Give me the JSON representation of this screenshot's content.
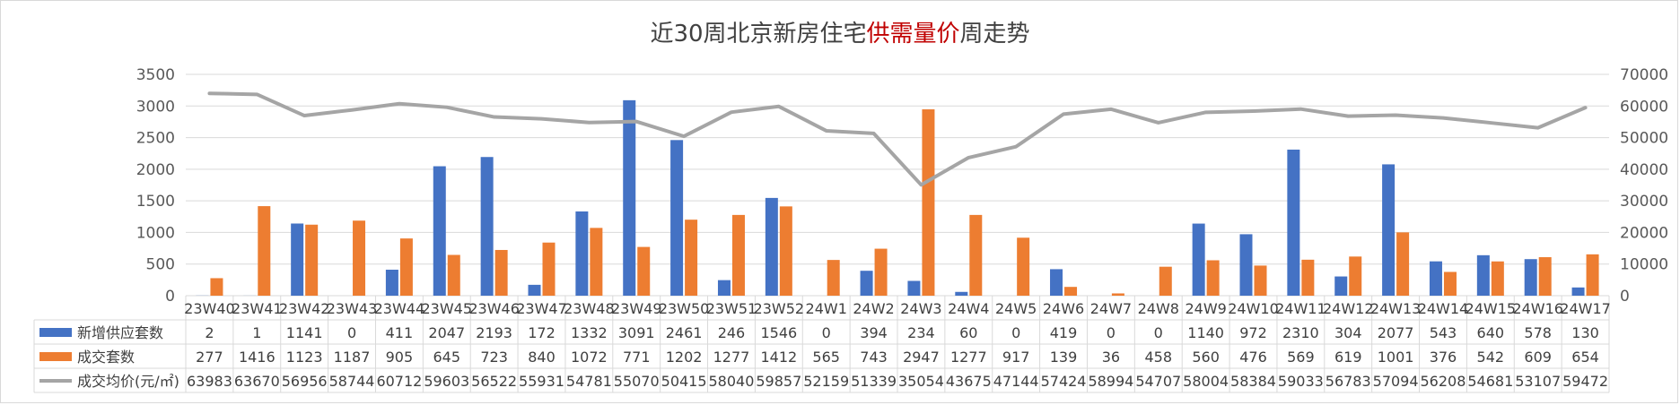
{
  "chart_data": {
    "type": "bar",
    "title_parts": [
      "近30周北京新房住宅",
      "供需量价",
      "周走势"
    ],
    "title_colors": [
      "#404040",
      "#c00000",
      "#404040"
    ],
    "categories": [
      "23W40",
      "23W41",
      "23W42",
      "23W43",
      "23W44",
      "23W45",
      "23W46",
      "23W47",
      "23W48",
      "23W49",
      "23W50",
      "23W51",
      "23W52",
      "24W1",
      "24W2",
      "24W3",
      "24W4",
      "24W5",
      "24W6",
      "24W7",
      "24W8",
      "24W9",
      "24W10",
      "24W11",
      "24W12",
      "24W13",
      "24W14",
      "24W15",
      "24W16",
      "24W17"
    ],
    "y_left": {
      "min": 0,
      "max": 3500,
      "step": 500,
      "ticks": [
        "0",
        "500",
        "1000",
        "1500",
        "2000",
        "2500",
        "3000",
        "3500"
      ]
    },
    "y_right": {
      "min": 0,
      "max": 70000,
      "step": 10000,
      "ticks": [
        "0",
        "10000",
        "20000",
        "30000",
        "40000",
        "50000",
        "60000",
        "70000"
      ]
    },
    "grid": true,
    "series": [
      {
        "name": "新增供应套数",
        "type": "bar",
        "axis": "left",
        "color": "#4472c4",
        "values": [
          2,
          1,
          1141,
          0,
          411,
          2047,
          2193,
          172,
          1332,
          3091,
          2461,
          246,
          1546,
          0,
          394,
          234,
          60,
          0,
          419,
          0,
          0,
          1140,
          972,
          2310,
          304,
          2077,
          543,
          640,
          578,
          130
        ]
      },
      {
        "name": "成交套数",
        "type": "bar",
        "axis": "left",
        "color": "#ed7d31",
        "values": [
          277,
          1416,
          1123,
          1187,
          905,
          645,
          723,
          840,
          1072,
          771,
          1202,
          1277,
          1412,
          565,
          743,
          2947,
          1277,
          917,
          139,
          36,
          458,
          560,
          476,
          569,
          619,
          1001,
          376,
          542,
          609,
          654
        ]
      },
      {
        "name": "成交均价(元/㎡)",
        "type": "line",
        "axis": "right",
        "color": "#a5a5a5",
        "values": [
          63983,
          63670,
          56956,
          58744,
          60712,
          59603,
          56522,
          55931,
          54781,
          55070,
          50415,
          58040,
          59857,
          52159,
          51339,
          35054,
          43675,
          47144,
          57424,
          58994,
          54707,
          58004,
          58384,
          59033,
          56783,
          57094,
          56208,
          54681,
          53107,
          59472
        ]
      }
    ],
    "data_table": true
  }
}
